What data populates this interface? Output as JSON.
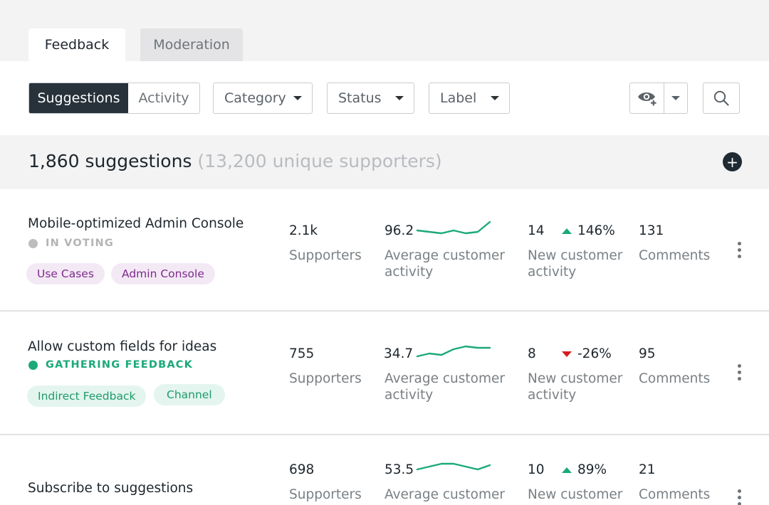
{
  "tabs": [
    {
      "label": "Feedback"
    },
    {
      "label": "Moderation"
    }
  ],
  "toolbar": {
    "view_toggle": [
      "Suggestions",
      "Activity"
    ],
    "filters": [
      "Category",
      "Status",
      "Label"
    ],
    "visibility_icon": "eye-plus-icon",
    "search_icon": "search-icon"
  },
  "summary": {
    "count": "1,860 suggestions",
    "supporters": "(13,200 unique supporters)",
    "add_icon": "plus-icon"
  },
  "colors": {
    "accent_green": "#1ba97a",
    "down_red": "#d51d1d",
    "dark": "#27323b"
  },
  "rows": [
    {
      "title": "Mobile-optimized Admin Console",
      "status": "IN VOTING",
      "status_color": "#bdbdbd",
      "tags": [
        "Use Cases",
        "Admin Console"
      ],
      "supporters": "2.1k",
      "supporters_label": "Supporters",
      "activity": "96.2",
      "activity_label_1": "Average customer",
      "activity_label_2": "activity",
      "activity_trend": [
        4,
        3,
        2,
        4,
        2,
        3,
        10
      ],
      "new_count": "14",
      "new_delta": "146%",
      "new_direction": "up",
      "new_label_1": "New customer",
      "new_label_2": "activity",
      "comments": "131",
      "comments_label": "Comments"
    },
    {
      "title": "Allow custom fields for ideas",
      "status": "GATHERING FEEDBACK",
      "status_color": "#1ba97a",
      "tags": [
        "Indirect Feedback",
        "Channel"
      ],
      "supporters": "755",
      "supporters_label": "Supporters",
      "activity": "34.7",
      "activity_label_1": "Average customer",
      "activity_label_2": "activity",
      "activity_trend": [
        2,
        4,
        3,
        7,
        9,
        8,
        8
      ],
      "new_count": "8",
      "new_delta": "-26%",
      "new_direction": "down",
      "new_label_1": "New customer",
      "new_label_2": "activity",
      "comments": "95",
      "comments_label": "Comments"
    },
    {
      "title": "Subscribe to suggestions",
      "supporters": "698",
      "supporters_label": "Supporters",
      "activity": "53.5",
      "activity_label_1": "Average customer",
      "activity_trend": [
        4,
        6,
        8,
        8,
        6,
        4,
        7
      ],
      "new_count": "10",
      "new_delta": "89%",
      "new_direction": "up",
      "new_label_1": "New customer",
      "comments": "21",
      "comments_label": "Comments"
    }
  ]
}
